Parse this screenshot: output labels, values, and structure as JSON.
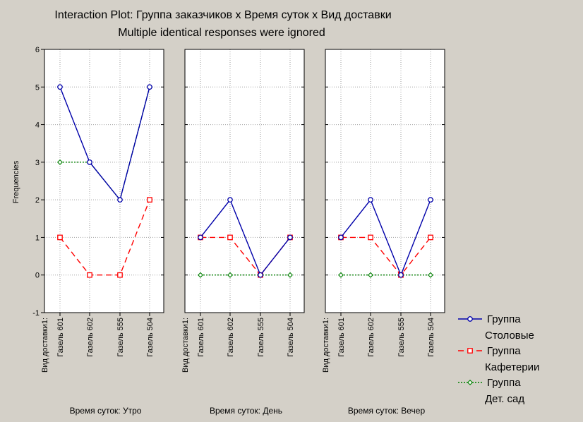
{
  "chart_data": {
    "type": "line",
    "title": "Interaction Plot: Группа заказчиков x Время суток x Вид доставки",
    "subtitle": "Multiple identical responses were ignored",
    "ylabel": "Frequencies",
    "ylim": [
      -1,
      6
    ],
    "yticks": [
      "6",
      "5",
      "4",
      "3",
      "2",
      "1",
      "0",
      "-1"
    ],
    "grid": true,
    "legend_position": "bottom-right",
    "category_axis_title": "Вид доставки1:",
    "categories": [
      "Газель 601",
      "Газель 602",
      "Газель 555",
      "Газель 504"
    ],
    "panels": [
      {
        "xlabel": "Время суток: Утро",
        "series": [
          {
            "name": "Группа Столовые",
            "values": [
              5,
              3,
              2,
              5
            ]
          },
          {
            "name": "Группа Кафетерии",
            "values": [
              1,
              0,
              0,
              2
            ]
          },
          {
            "name": "Группа Дет. сад",
            "values": [
              3,
              3,
              2,
              5
            ]
          }
        ]
      },
      {
        "xlabel": "Время суток: День",
        "series": [
          {
            "name": "Группа Столовые",
            "values": [
              1,
              2,
              0,
              1
            ]
          },
          {
            "name": "Группа Кафетерии",
            "values": [
              1,
              1,
              0,
              1
            ]
          },
          {
            "name": "Группа Дет. сад",
            "values": [
              0,
              0,
              0,
              0
            ]
          }
        ]
      },
      {
        "xlabel": "Время суток: Вечер",
        "series": [
          {
            "name": "Группа Столовые",
            "values": [
              1,
              2,
              0,
              2
            ]
          },
          {
            "name": "Группа Кафетерии",
            "values": [
              1,
              1,
              0,
              1
            ]
          },
          {
            "name": "Группа Дет. сад",
            "values": [
              0,
              0,
              0,
              0
            ]
          }
        ]
      }
    ],
    "legend": [
      {
        "line1": "Группа",
        "line2": "Столовые",
        "color": "#0000aa",
        "marker": "circle",
        "dash": "solid"
      },
      {
        "line1": "Группа",
        "line2": "Кафетерии",
        "color": "#ff0000",
        "marker": "square",
        "dash": "dashed"
      },
      {
        "line1": "Группа",
        "line2": "Дет. сад",
        "color": "#008000",
        "marker": "diamond",
        "dash": "dotted"
      }
    ]
  }
}
